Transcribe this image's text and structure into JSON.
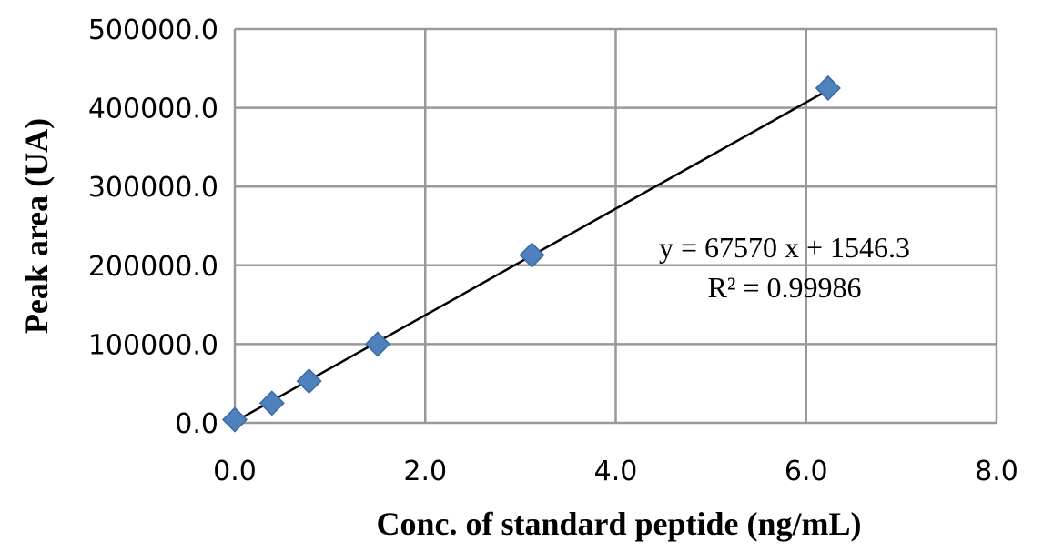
{
  "chart_data": {
    "type": "scatter",
    "title": "",
    "xlabel": "Conc. of standard peptide (ng/mL)",
    "ylabel": "Peak area (UA)",
    "xlim": [
      0,
      8
    ],
    "ylim": [
      0,
      500000
    ],
    "x_ticks": [
      0,
      2,
      4,
      6,
      8
    ],
    "y_ticks": [
      0,
      100000,
      200000,
      300000,
      400000,
      500000
    ],
    "x_tick_labels": [
      "0.0",
      "2.0",
      "4.0",
      "6.0",
      "8.0"
    ],
    "y_tick_labels": [
      "0.0",
      "100000.0",
      "200000.0",
      "300000.0",
      "400000.0",
      "500000.0"
    ],
    "grid": true,
    "marker": "diamond",
    "series": [
      {
        "x": [
          0,
          0.39,
          0.78,
          1.5,
          3.12,
          6.23
        ],
        "y": [
          4000,
          25000,
          53000,
          100000,
          213000,
          425000
        ]
      }
    ],
    "trendline": {
      "slope": 67570,
      "intercept": 1546.3,
      "x_range": [
        0,
        6.23
      ]
    },
    "annotations": [
      "y = 67570 x + 1546.3",
      "R² = 0.99986"
    ],
    "colors": {
      "marker": "#4F81BD",
      "trendline": "#000000",
      "grid": "#999999"
    }
  }
}
